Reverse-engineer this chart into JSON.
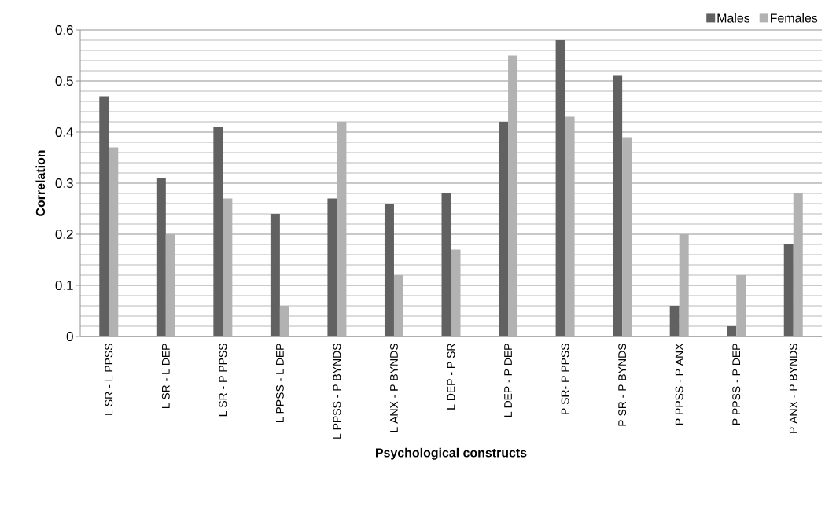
{
  "chart_data": {
    "type": "bar",
    "xlabel": "Psychological constructs",
    "ylabel": "Correlation",
    "categories": [
      "L SR - L PPSS",
      "L SR - L DEP",
      "L SR - P PPSS",
      "L PPSS - L DEP",
      "L PPSS - P BYNDS",
      "L ANX - P BYNDS",
      "L DEP - P SR",
      "L DEP - P DEP",
      "P SR- P PPSS",
      "P SR - P BYNDS",
      "P PPSS - P ANX",
      "P PPSS - P DEP",
      "P ANX - P BYNDS"
    ],
    "series": [
      {
        "name": "Males",
        "color": "#616161",
        "values": [
          0.47,
          0.31,
          0.41,
          0.24,
          0.27,
          0.26,
          0.28,
          0.42,
          0.58,
          0.51,
          0.06,
          0.02,
          0.18
        ]
      },
      {
        "name": "Females",
        "color": "#b2b2b2",
        "values": [
          0.37,
          0.2,
          0.27,
          0.06,
          0.42,
          0.12,
          0.17,
          0.55,
          0.43,
          0.39,
          0.2,
          0.12,
          0.28
        ]
      }
    ],
    "ylim": [
      0,
      0.6
    ],
    "yticks": [
      0,
      0.1,
      0.2,
      0.3,
      0.4,
      0.5,
      0.6
    ],
    "grid": "y",
    "legend": "top right"
  }
}
